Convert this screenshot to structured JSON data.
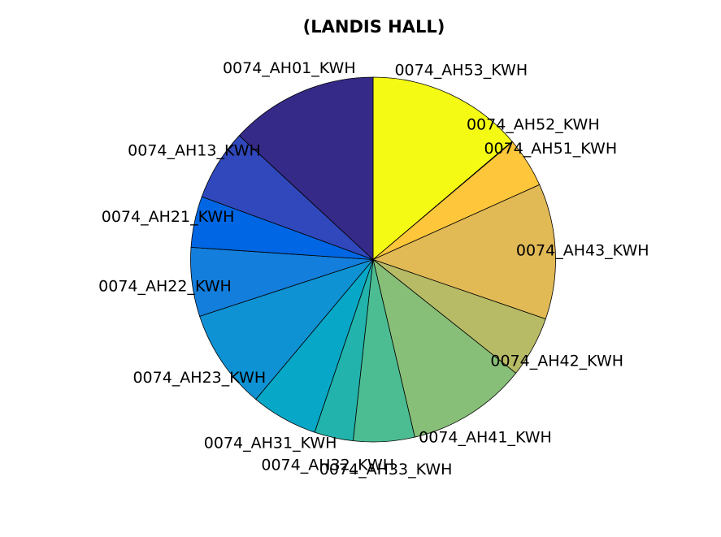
{
  "chart_data": {
    "type": "pie",
    "title": "(LANDIS HALL)",
    "start": "top",
    "direction": "clockwise",
    "slices": [
      {
        "label": "0074_AH53_KWH",
        "value": 14.0,
        "color": "#f5fa14"
      },
      {
        "label": "0074_AH52_KWH",
        "value": 0.05,
        "color": "#fbf51c"
      },
      {
        "label": "0074_AH51_KWH",
        "value": 4.5,
        "color": "#fec63a"
      },
      {
        "label": "0074_AH43_KWH",
        "value": 12.2,
        "color": "#e1b955"
      },
      {
        "label": "0074_AH42_KWH",
        "value": 5.5,
        "color": "#b8bb66"
      },
      {
        "label": "0074_AH41_KWH",
        "value": 10.8,
        "color": "#88bf78"
      },
      {
        "label": "0074_AH33_KWH",
        "value": 5.5,
        "color": "#4cbd93"
      },
      {
        "label": "0074_AH32_KWH",
        "value": 3.5,
        "color": "#21b3ac"
      },
      {
        "label": "0074_AH31_KWH",
        "value": 6.0,
        "color": "#07a7c7"
      },
      {
        "label": "0074_AH23_KWH",
        "value": 9.0,
        "color": "#0f92d3"
      },
      {
        "label": "0074_AH22_KWH",
        "value": 6.2,
        "color": "#137edc"
      },
      {
        "label": "0074_AH21_KWH",
        "value": 4.6,
        "color": "#0066e3"
      },
      {
        "label": "0074_AH13_KWH",
        "value": 6.4,
        "color": "#3048bb"
      },
      {
        "label": "0074_AH01_KWH",
        "value": 13.3,
        "color": "#352a87"
      }
    ]
  }
}
